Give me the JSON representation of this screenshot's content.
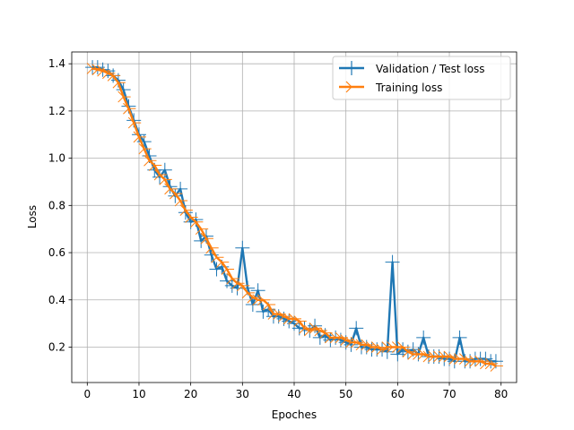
{
  "chart_data": {
    "type": "line",
    "xlabel": "Epoches",
    "ylabel": "Loss",
    "xlim": [
      -3,
      83
    ],
    "ylim": [
      0.05,
      1.45
    ],
    "xticks": [
      0,
      10,
      20,
      30,
      40,
      50,
      60,
      70,
      80
    ],
    "yticks": [
      0.2,
      0.4,
      0.6,
      0.8,
      1.0,
      1.2,
      1.4
    ],
    "xtick_labels": [
      "0",
      "10",
      "20",
      "30",
      "40",
      "50",
      "60",
      "70",
      "80"
    ],
    "ytick_labels": [
      "0.2",
      "0.4",
      "0.6",
      "0.8",
      "1.0",
      "1.2",
      "1.4"
    ],
    "grid": true,
    "legend_position": "top-right",
    "x": [
      1,
      2,
      3,
      4,
      5,
      6,
      7,
      8,
      9,
      10,
      11,
      12,
      13,
      14,
      15,
      16,
      17,
      18,
      19,
      20,
      21,
      22,
      23,
      24,
      25,
      26,
      27,
      28,
      29,
      30,
      31,
      32,
      33,
      34,
      35,
      36,
      37,
      38,
      39,
      40,
      41,
      42,
      43,
      44,
      45,
      46,
      47,
      48,
      49,
      50,
      51,
      52,
      53,
      54,
      55,
      56,
      57,
      58,
      59,
      60,
      61,
      62,
      63,
      64,
      65,
      66,
      67,
      68,
      69,
      70,
      71,
      72,
      73,
      74,
      75,
      76,
      77,
      78,
      79
    ],
    "series": [
      {
        "name": "Validation / Test loss",
        "color": "#1f77b4",
        "marker": "plus",
        "values": [
          1.385,
          1.385,
          1.375,
          1.37,
          1.35,
          1.33,
          1.29,
          1.22,
          1.16,
          1.1,
          1.07,
          1.01,
          0.95,
          0.92,
          0.95,
          0.88,
          0.84,
          0.87,
          0.77,
          0.73,
          0.74,
          0.65,
          0.67,
          0.59,
          0.53,
          0.54,
          0.48,
          0.46,
          0.45,
          0.62,
          0.45,
          0.38,
          0.44,
          0.35,
          0.36,
          0.33,
          0.33,
          0.32,
          0.31,
          0.3,
          0.28,
          0.28,
          0.27,
          0.29,
          0.24,
          0.25,
          0.23,
          0.24,
          0.23,
          0.22,
          0.21,
          0.28,
          0.2,
          0.2,
          0.19,
          0.19,
          0.19,
          0.18,
          0.56,
          0.17,
          0.19,
          0.18,
          0.19,
          0.17,
          0.24,
          0.16,
          0.16,
          0.16,
          0.15,
          0.15,
          0.14,
          0.24,
          0.14,
          0.14,
          0.15,
          0.15,
          0.15,
          0.14,
          0.14
        ]
      },
      {
        "name": "Training loss",
        "color": "#ff7f0e",
        "marker": "tri_right",
        "values": [
          1.38,
          1.375,
          1.37,
          1.36,
          1.35,
          1.32,
          1.26,
          1.21,
          1.15,
          1.09,
          1.04,
          0.99,
          0.97,
          0.93,
          0.91,
          0.87,
          0.85,
          0.82,
          0.78,
          0.75,
          0.73,
          0.7,
          0.66,
          0.62,
          0.58,
          0.56,
          0.53,
          0.49,
          0.47,
          0.46,
          0.43,
          0.41,
          0.4,
          0.4,
          0.38,
          0.34,
          0.34,
          0.33,
          0.32,
          0.32,
          0.31,
          0.28,
          0.27,
          0.28,
          0.27,
          0.26,
          0.24,
          0.24,
          0.24,
          0.23,
          0.22,
          0.22,
          0.21,
          0.21,
          0.2,
          0.2,
          0.19,
          0.2,
          0.2,
          0.2,
          0.2,
          0.18,
          0.17,
          0.17,
          0.17,
          0.16,
          0.16,
          0.16,
          0.16,
          0.16,
          0.15,
          0.15,
          0.15,
          0.14,
          0.14,
          0.14,
          0.13,
          0.13,
          0.12
        ]
      }
    ]
  }
}
